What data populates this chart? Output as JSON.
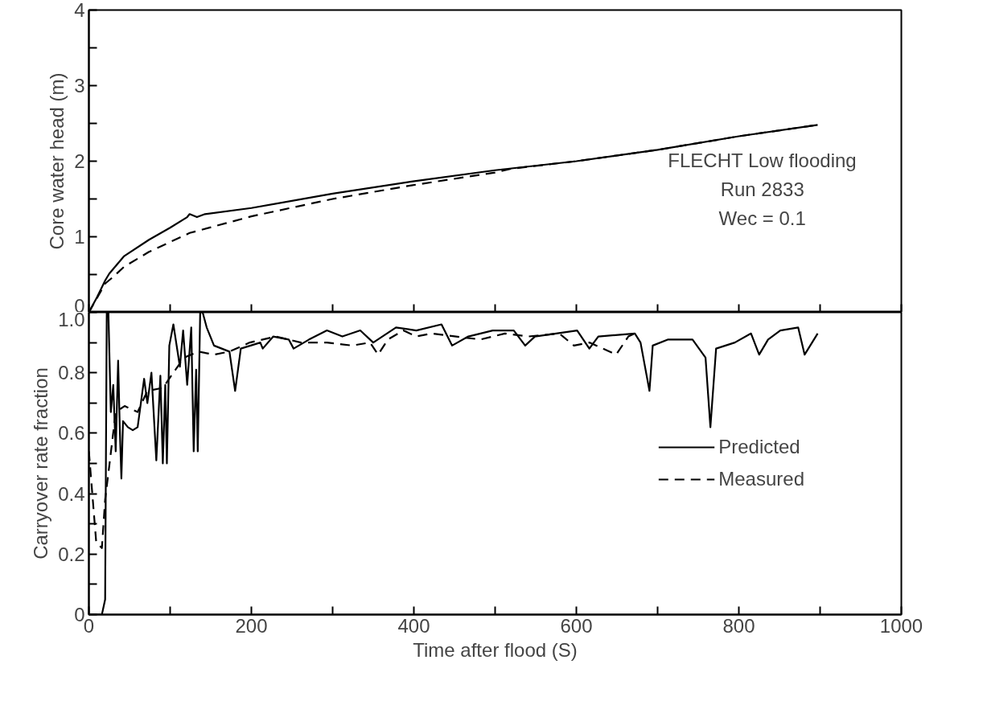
{
  "chart_data": [
    {
      "type": "line",
      "ylabel": "Core water head (m)",
      "tick_labels": "y",
      "annotations": [
        "FLECHT Low flooding",
        "Run 2833",
        "Wec = 0.1"
      ],
      "xlim": [
        0,
        1000
      ],
      "xticks": [
        {
          "value": 0,
          "label": null
        },
        {
          "value": 100,
          "label": null
        },
        {
          "value": 200,
          "label": null
        },
        {
          "value": 300,
          "label": null
        },
        {
          "value": 400,
          "label": null
        },
        {
          "value": 500,
          "label": null
        },
        {
          "value": 600,
          "label": null
        },
        {
          "value": 700,
          "label": null
        },
        {
          "value": 800,
          "label": null
        },
        {
          "value": 900,
          "label": null
        },
        {
          "value": 1000,
          "label": null
        }
      ],
      "ylim": [
        0,
        4
      ],
      "yticks": [
        0,
        {
          "value": 0.5,
          "label": null
        },
        1,
        {
          "value": 1.5,
          "label": null
        },
        2,
        {
          "value": 2.5,
          "label": null
        },
        3,
        {
          "value": 3.5,
          "label": null
        },
        4
      ],
      "series": [
        {
          "color": "#000000",
          "line_style": "solid",
          "x": [
            0,
            10,
            20,
            25,
            43,
            74,
            100,
            121,
            124,
            133,
            143,
            200,
            300,
            397,
            500,
            600,
            700,
            800,
            897
          ],
          "values": [
            0,
            0.2,
            0.42,
            0.51,
            0.74,
            0.96,
            1.12,
            1.26,
            1.3,
            1.26,
            1.3,
            1.38,
            1.57,
            1.73,
            1.88,
            2.0,
            2.15,
            2.33,
            2.48
          ]
        },
        {
          "color": "#000000",
          "line_style": "dashed",
          "x": [
            0,
            20,
            30,
            43,
            74,
            124,
            200,
            300,
            397,
            500,
            520,
            600,
            700,
            800,
            897
          ],
          "values": [
            0,
            0.38,
            0.47,
            0.6,
            0.8,
            1.05,
            1.27,
            1.5,
            1.68,
            1.85,
            1.9,
            2.0,
            2.15,
            2.33,
            2.48
          ]
        }
      ]
    },
    {
      "type": "line",
      "xlabel": "Time after flood (S)",
      "ylabel": "Carryover rate fraction",
      "legend": "center right",
      "xlim": [
        0,
        1000
      ],
      "xticks": [
        0,
        {
          "value": 100,
          "label": null
        },
        200,
        {
          "value": 300,
          "label": null
        },
        400,
        {
          "value": 500,
          "label": null
        },
        600,
        {
          "value": 700,
          "label": null
        },
        800,
        {
          "value": 900,
          "label": null
        },
        1000
      ],
      "ylim": [
        0,
        1
      ],
      "yticks": [
        0,
        {
          "value": 0.1,
          "label": null
        },
        0.2,
        {
          "value": 0.3,
          "label": null
        },
        0.4,
        {
          "value": 0.5,
          "label": null
        },
        0.6,
        {
          "value": 0.7,
          "label": null
        },
        0.8,
        {
          "value": 0.9,
          "label": null
        },
        {
          "value": 1,
          "label": "1.0"
        }
      ],
      "series": [
        {
          "name": "Predicted",
          "color": "#000000",
          "line_style": "solid",
          "x": [
            0,
            16,
            20,
            22,
            24,
            27,
            30,
            33,
            36,
            38,
            40,
            42,
            48,
            54,
            60,
            68,
            72,
            77,
            83,
            88,
            91,
            94,
            96,
            99,
            104,
            112,
            116,
            121,
            126,
            129,
            132,
            134,
            137,
            140,
            145,
            154,
            173,
            180,
            187,
            211,
            214,
            227,
            246,
            252,
            271,
            293,
            312,
            334,
            350,
            378,
            403,
            434,
            447,
            467,
            497,
            523,
            537,
            549,
            601,
            616,
            627,
            672,
            679,
            690,
            694,
            713,
            743,
            759,
            765,
            772,
            795,
            815,
            825,
            836,
            851,
            873,
            881,
            897
          ],
          "values": [
            0,
            0,
            0.05,
            1.0,
            1.0,
            0.67,
            0.76,
            0.54,
            0.84,
            0.62,
            0.45,
            0.64,
            0.62,
            0.61,
            0.62,
            0.78,
            0.7,
            0.8,
            0.51,
            0.79,
            0.5,
            0.76,
            0.5,
            0.89,
            0.96,
            0.82,
            0.94,
            0.76,
            0.95,
            0.54,
            0.81,
            0.54,
            1.0,
            1.0,
            0.95,
            0.89,
            0.87,
            0.74,
            0.88,
            0.9,
            0.88,
            0.92,
            0.91,
            0.88,
            0.91,
            0.94,
            0.92,
            0.94,
            0.9,
            0.95,
            0.94,
            0.96,
            0.89,
            0.92,
            0.94,
            0.94,
            0.89,
            0.92,
            0.94,
            0.88,
            0.92,
            0.93,
            0.9,
            0.74,
            0.89,
            0.91,
            0.91,
            0.85,
            0.62,
            0.88,
            0.9,
            0.93,
            0.86,
            0.91,
            0.94,
            0.95,
            0.86,
            0.93
          ]
        },
        {
          "name": "Measured",
          "color": "#000000",
          "line_style": "dashed",
          "x": [
            0,
            9,
            16,
            20,
            25,
            33,
            44,
            60,
            72,
            91,
            104,
            117,
            135,
            154,
            173,
            198,
            230,
            261,
            293,
            324,
            346,
            356,
            368,
            387,
            403,
            422,
            482,
            512,
            541,
            579,
            597,
            616,
            649,
            664,
            672
          ],
          "values": [
            0.54,
            0.24,
            0.22,
            0.38,
            0.49,
            0.67,
            0.69,
            0.67,
            0.74,
            0.75,
            0.8,
            0.85,
            0.87,
            0.86,
            0.87,
            0.9,
            0.92,
            0.9,
            0.9,
            0.89,
            0.9,
            0.86,
            0.91,
            0.94,
            0.92,
            0.93,
            0.91,
            0.93,
            0.92,
            0.93,
            0.89,
            0.9,
            0.86,
            0.92,
            0.93
          ]
        }
      ]
    }
  ]
}
